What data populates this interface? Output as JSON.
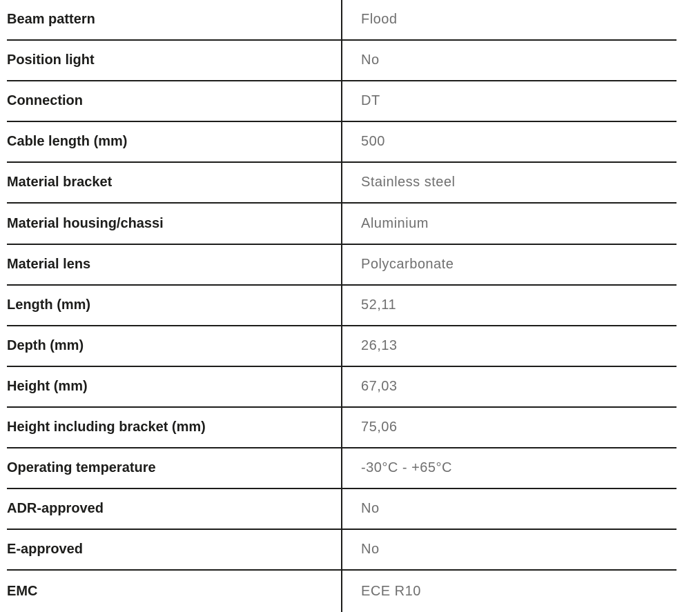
{
  "table": {
    "rows": [
      {
        "label": "Beam pattern",
        "value": "Flood"
      },
      {
        "label": "Position light",
        "value": "No"
      },
      {
        "label": "Connection",
        "value": "DT"
      },
      {
        "label": "Cable length (mm)",
        "value": "500"
      },
      {
        "label": "Material bracket",
        "value": "Stainless steel"
      },
      {
        "label": "Material housing/chassi",
        "value": "Aluminium"
      },
      {
        "label": "Material lens",
        "value": "Polycarbonate"
      },
      {
        "label": "Length (mm)",
        "value": "52,11"
      },
      {
        "label": "Depth (mm)",
        "value": "26,13"
      },
      {
        "label": "Height (mm)",
        "value": "67,03"
      },
      {
        "label": "Height including bracket (mm)",
        "value": "75,06"
      },
      {
        "label": "Operating temperature",
        "value": "-30°C - +65°C"
      },
      {
        "label": "ADR-approved",
        "value": "No"
      },
      {
        "label": "E-approved",
        "value": "No"
      },
      {
        "label": "EMC",
        "value": "ECE R10"
      }
    ],
    "colors": {
      "label_text": "#1d1d1b",
      "value_text": "#6f6f6f",
      "line": "#1d1d1b",
      "background": "#ffffff"
    }
  }
}
